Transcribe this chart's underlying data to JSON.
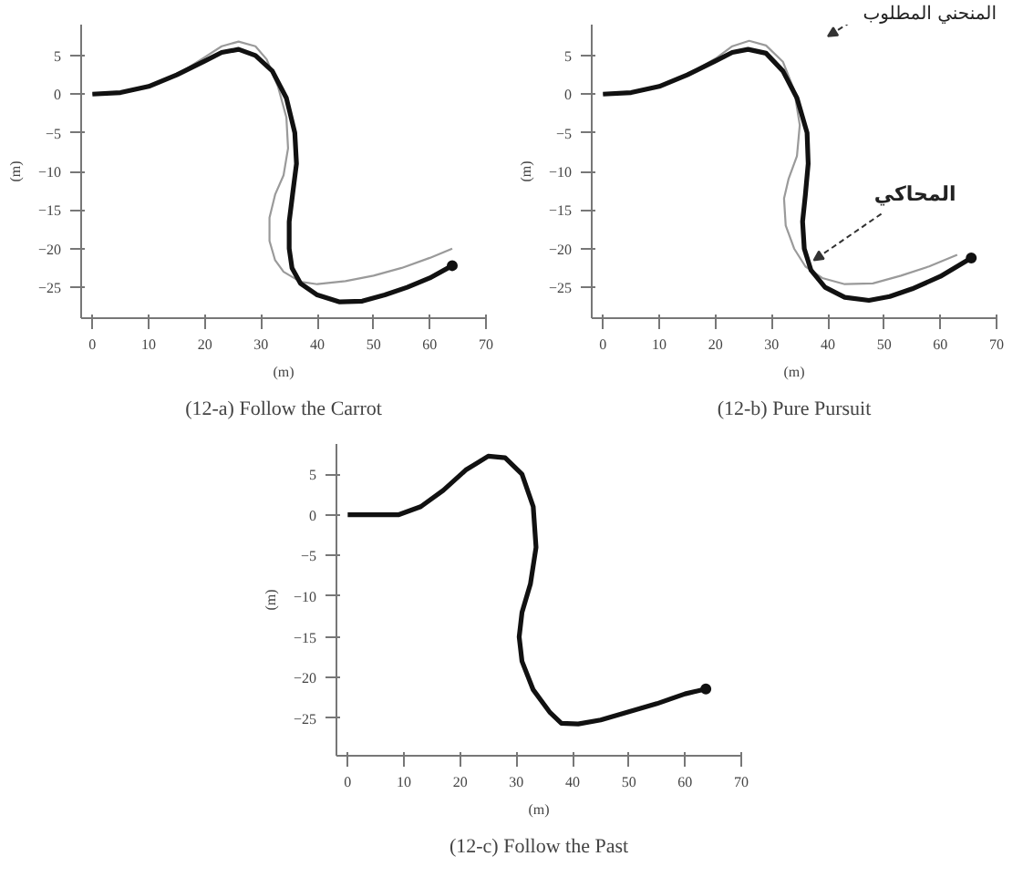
{
  "chart_data": [
    {
      "type": "line",
      "title": "(12-a) Follow the Carrot",
      "xlabel": "(m)",
      "ylabel": "(m)",
      "xlim": [
        -2,
        70
      ],
      "ylim": [
        -29,
        9
      ],
      "xticks": [
        0,
        10,
        20,
        30,
        40,
        50,
        60,
        70
      ],
      "yticks": [
        5,
        0,
        -5,
        -10,
        -15,
        -20,
        -25
      ],
      "series": [
        {
          "color": "#9a9a9a",
          "x": [
            0,
            5,
            10,
            15,
            20,
            23,
            26,
            29,
            31,
            33,
            34.5,
            34.8,
            34,
            32.5,
            31.5,
            31.5,
            32.5,
            34,
            37,
            40,
            45,
            50,
            55,
            60,
            64
          ],
          "values": [
            0,
            0.2,
            1,
            2.5,
            4.8,
            6.2,
            6.8,
            6.2,
            4.5,
            1,
            -3,
            -7,
            -10.5,
            -13,
            -16,
            -19,
            -21.5,
            -23,
            -24.3,
            -24.6,
            -24.2,
            -23.5,
            -22.5,
            -21.2,
            -20
          ]
        },
        {
          "color": "#111111",
          "x": [
            0,
            5,
            10,
            15,
            20,
            23,
            26,
            29,
            32,
            34.5,
            36,
            36.3,
            35.6,
            35,
            35,
            35.5,
            37,
            40,
            44,
            48,
            52,
            56,
            60,
            64
          ],
          "values": [
            0,
            0.2,
            1,
            2.5,
            4.3,
            5.4,
            5.8,
            5,
            3,
            -0.5,
            -5,
            -9,
            -13,
            -16.5,
            -20,
            -22.5,
            -24.5,
            -26,
            -26.9,
            -26.8,
            -26,
            -25,
            -23.8,
            -22.2
          ]
        }
      ]
    },
    {
      "type": "line",
      "title": "(12-b) Pure Pursuit",
      "xlabel": "(m)",
      "ylabel": "(m)",
      "xlim": [
        -2,
        70
      ],
      "ylim": [
        -29,
        9
      ],
      "xticks": [
        0,
        10,
        20,
        30,
        40,
        50,
        60,
        70
      ],
      "yticks": [
        5,
        0,
        -5,
        -10,
        -15,
        -20,
        -25
      ],
      "annotations": [
        "المنحني المطلوب",
        {
          "text": "المحاكي",
          "x": 37.5,
          "y": -21.5
        }
      ],
      "series": [
        {
          "color": "#9a9a9a",
          "x": [
            0,
            5,
            10,
            15,
            20,
            23,
            26,
            29,
            32,
            34,
            35,
            34.5,
            33,
            32.2,
            32.5,
            34,
            36,
            39,
            43,
            48,
            53,
            58,
            63
          ],
          "values": [
            0,
            0.2,
            1,
            2.5,
            4.6,
            6.2,
            6.9,
            6.3,
            4.2,
            0.5,
            -4,
            -8,
            -11,
            -13.5,
            -17,
            -20,
            -22.3,
            -23.8,
            -24.6,
            -24.5,
            -23.5,
            -22.3,
            -20.8
          ]
        },
        {
          "color": "#111111",
          "x": [
            0,
            5,
            10,
            15,
            20,
            23,
            25.8,
            29,
            32,
            34.5,
            36.3,
            36.5,
            36,
            35.5,
            35.8,
            37,
            39.5,
            43,
            47.3,
            51,
            55,
            60,
            65.5
          ],
          "values": [
            0,
            0.2,
            1,
            2.5,
            4.3,
            5.4,
            5.8,
            5.3,
            3,
            -0.5,
            -5,
            -9,
            -13,
            -16.5,
            -20,
            -22.8,
            -25,
            -26.3,
            -26.7,
            -26.2,
            -25.2,
            -23.6,
            -21.2
          ]
        }
      ]
    },
    {
      "type": "line",
      "title": "(12-c) Follow the Past",
      "xlabel": "(m)",
      "ylabel": "(m)",
      "xlim": [
        -2,
        70
      ],
      "ylim": [
        -29.6,
        8.7
      ],
      "xticks": [
        0,
        10,
        20,
        30,
        40,
        50,
        60,
        70
      ],
      "yticks": [
        5,
        0,
        -5,
        -10,
        -15,
        -20,
        -25
      ],
      "series": [
        {
          "color": "#111111",
          "x": [
            0,
            5,
            9,
            13,
            17,
            21,
            25,
            28,
            31,
            33,
            33.5,
            32.5,
            31,
            30.5,
            31,
            33,
            36,
            38,
            41,
            45,
            50,
            55,
            60,
            63.7
          ],
          "values": [
            0,
            0,
            0,
            1,
            3,
            5.5,
            7.2,
            7,
            5,
            1,
            -4,
            -8.5,
            -12,
            -15,
            -18,
            -21.5,
            -24.3,
            -25.6,
            -25.7,
            -25.2,
            -24.2,
            -23.2,
            -22,
            -21.4
          ]
        }
      ]
    }
  ]
}
